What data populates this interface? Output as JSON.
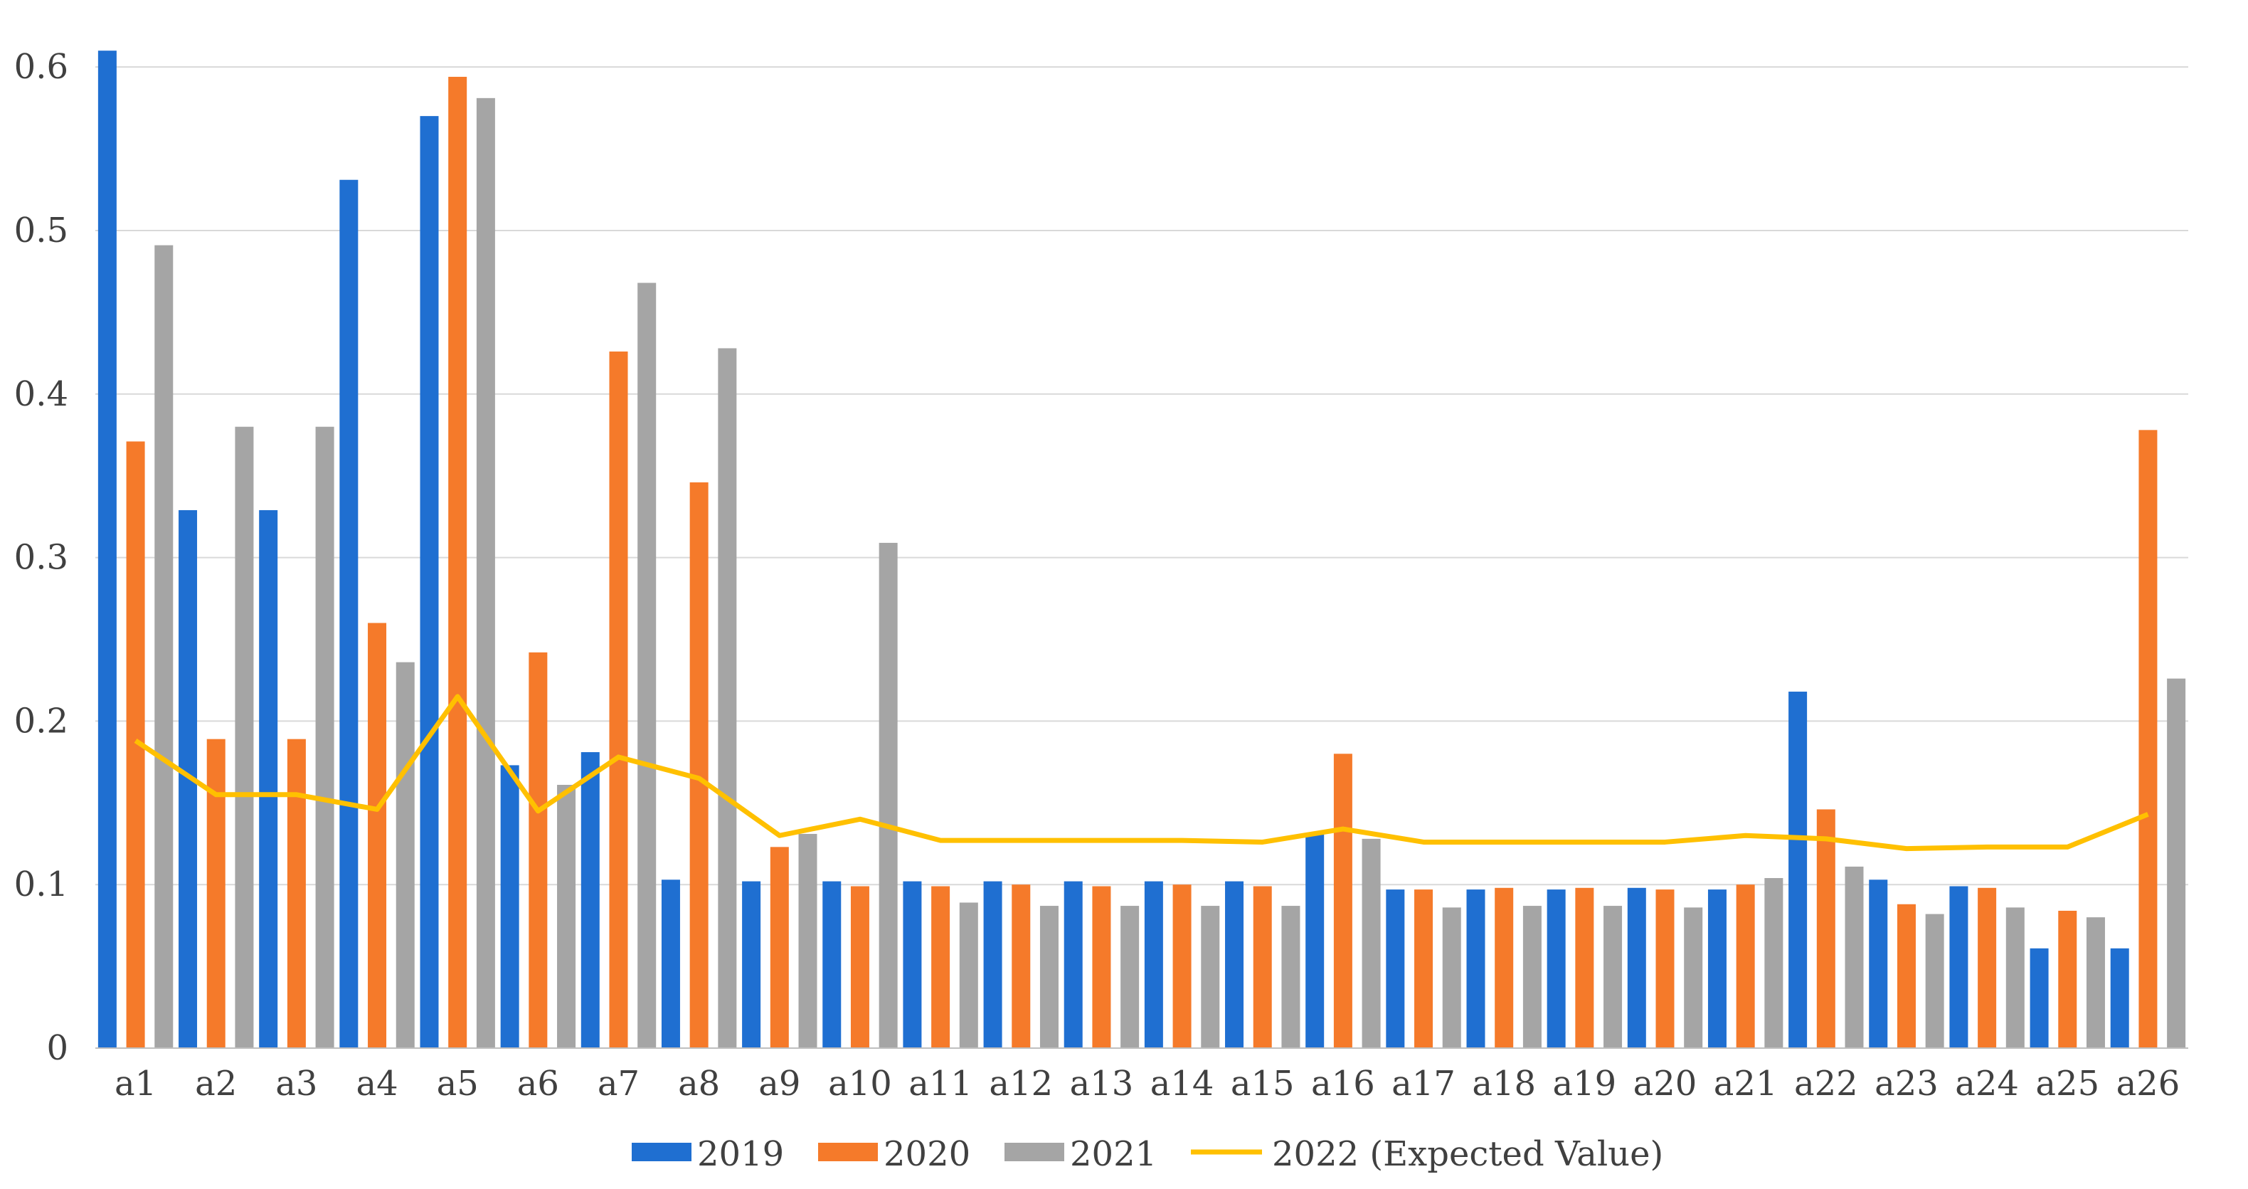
{
  "chart_data": {
    "type": "bar",
    "title": "",
    "xlabel": "",
    "ylabel": "",
    "ylim": [
      0,
      0.6
    ],
    "yticks": [
      0,
      0.1,
      0.2,
      0.3,
      0.4,
      0.5,
      0.6
    ],
    "ytick_labels": [
      "0",
      "0.1",
      "0.2",
      "0.3",
      "0.4",
      "0.5",
      "0.6"
    ],
    "grid": true,
    "legend_position": "bottom",
    "categories": [
      "a1",
      "a2",
      "a3",
      "a4",
      "a5",
      "a6",
      "a7",
      "a8",
      "a9",
      "a10",
      "a11",
      "a12",
      "a13",
      "a14",
      "a15",
      "a16",
      "a17",
      "a18",
      "a19",
      "a20",
      "a21",
      "a22",
      "a23",
      "a24",
      "a25",
      "a26"
    ],
    "series": [
      {
        "name": "2019",
        "kind": "bar",
        "color": "#1f6fd1",
        "values": [
          0.61,
          0.329,
          0.329,
          0.531,
          0.57,
          0.173,
          0.181,
          0.103,
          0.102,
          0.102,
          0.102,
          0.102,
          0.102,
          0.102,
          0.102,
          0.131,
          0.097,
          0.097,
          0.097,
          0.098,
          0.097,
          0.218,
          0.103,
          0.099,
          0.061,
          0.061
        ]
      },
      {
        "name": "2020",
        "kind": "bar",
        "color": "#f57a2a",
        "values": [
          0.371,
          0.189,
          0.189,
          0.26,
          0.594,
          0.242,
          0.426,
          0.346,
          0.123,
          0.099,
          0.099,
          0.1,
          0.099,
          0.1,
          0.099,
          0.18,
          0.097,
          0.098,
          0.098,
          0.097,
          0.1,
          0.146,
          0.088,
          0.098,
          0.084,
          0.378
        ]
      },
      {
        "name": "2021",
        "kind": "bar",
        "color": "#a5a5a5",
        "values": [
          0.491,
          0.38,
          0.38,
          0.236,
          0.581,
          0.161,
          0.468,
          0.428,
          0.131,
          0.309,
          0.089,
          0.087,
          0.087,
          0.087,
          0.087,
          0.128,
          0.086,
          0.087,
          0.087,
          0.086,
          0.104,
          0.111,
          0.082,
          0.086,
          0.08,
          0.226
        ]
      },
      {
        "name": "2022 (Expected Value)",
        "kind": "line",
        "color": "#ffc000",
        "values": [
          0.188,
          0.155,
          0.155,
          0.146,
          0.215,
          0.145,
          0.178,
          0.165,
          0.13,
          0.14,
          0.127,
          0.127,
          0.127,
          0.127,
          0.126,
          0.134,
          0.126,
          0.126,
          0.126,
          0.126,
          0.13,
          0.128,
          0.122,
          0.123,
          0.123,
          0.143
        ]
      }
    ]
  }
}
